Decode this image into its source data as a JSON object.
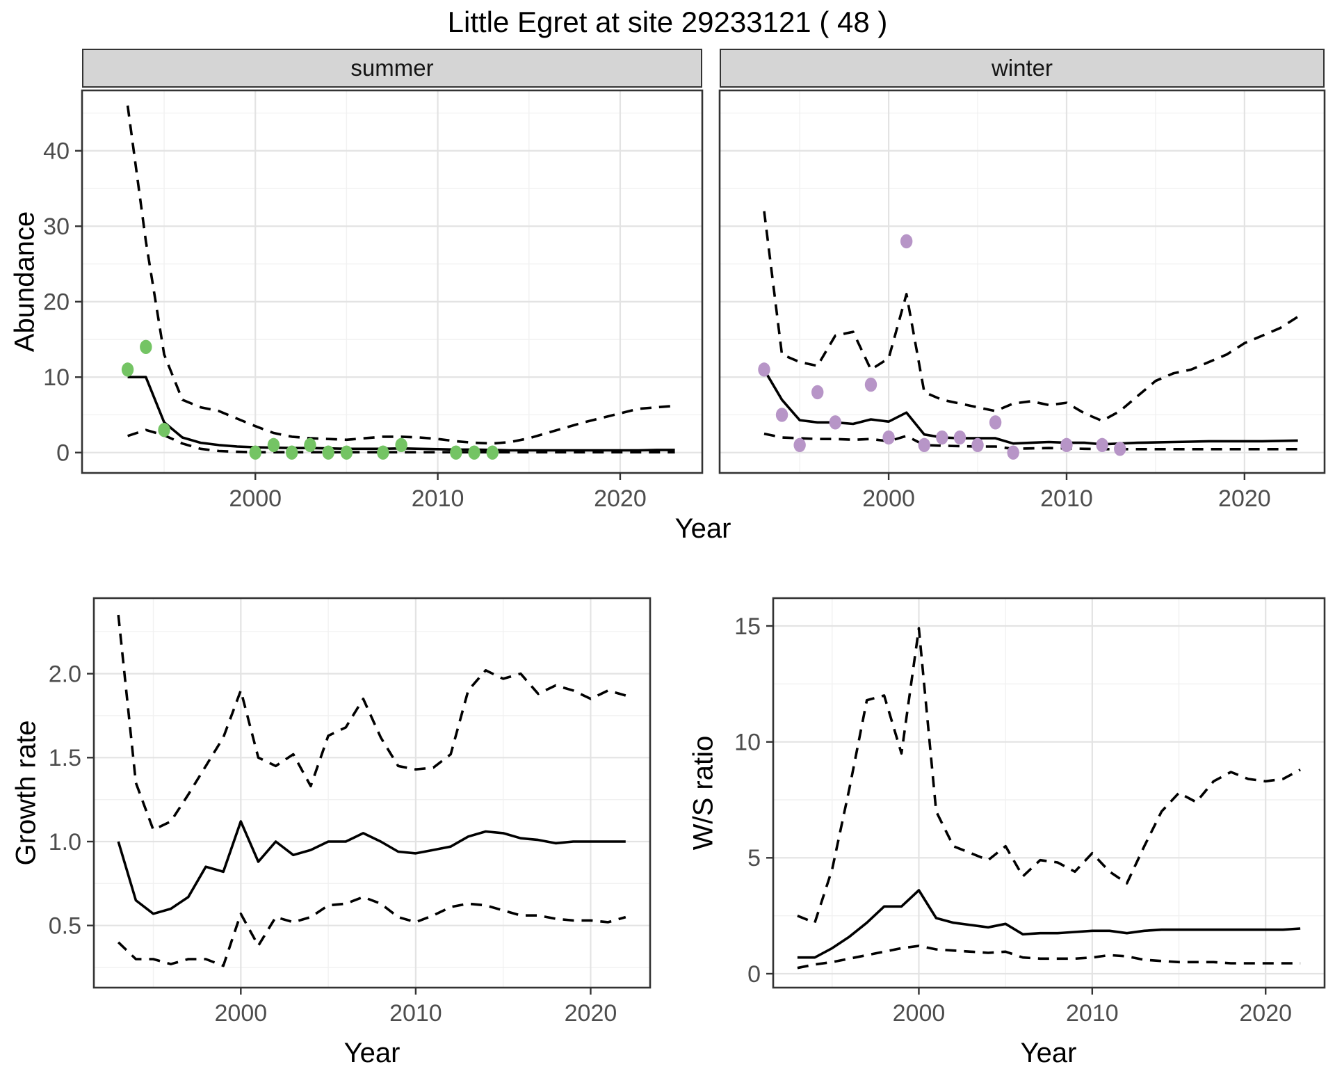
{
  "title": "Little Egret at site 29233121 ( 48 )",
  "labels": {
    "year": "Year",
    "abundance": "Abundance",
    "growth_rate": "Growth rate",
    "ws_ratio": "W/S ratio"
  },
  "colors": {
    "line": "#000000",
    "observed_summer": "#74c464",
    "observed_winter": "#b795c7",
    "grid_major": "#e3e3e3",
    "grid_minor": "#f1f1f1",
    "panel_border": "#333333",
    "tick_mark": "#333333",
    "tick_label": "#4d4d4d",
    "strip_bg": "#d5d5d5"
  },
  "chart_data": [
    {
      "id": "abundance-summer",
      "type": "line",
      "facet_label": "summer",
      "xlabel": "Year",
      "ylabel": "Abundance",
      "xlim": [
        1990.5,
        2024.5
      ],
      "ylim": [
        -2.7,
        48
      ],
      "xticks": [
        2000,
        2010,
        2020
      ],
      "yticks": [
        0,
        10,
        20,
        30,
        40
      ],
      "show_y_labels": true,
      "grid": true,
      "x": [
        1993,
        1994,
        1995,
        1996,
        1997,
        1998,
        1999,
        2000,
        2001,
        2002,
        2003,
        2004,
        2005,
        2006,
        2007,
        2008,
        2009,
        2010,
        2011,
        2012,
        2013,
        2014,
        2015,
        2016,
        2017,
        2018,
        2019,
        2020,
        2021,
        2022,
        2023
      ],
      "series": [
        {
          "name": "fit",
          "style": "solid",
          "y": [
            10,
            10,
            4,
            2,
            1.3,
            1,
            0.8,
            0.7,
            0.65,
            0.6,
            0.6,
            0.55,
            0.5,
            0.5,
            0.5,
            0.55,
            0.5,
            0.45,
            0.4,
            0.4,
            0.35,
            0.3,
            0.3,
            0.3,
            0.3,
            0.3,
            0.3,
            0.3,
            0.3,
            0.35,
            0.35
          ]
        },
        {
          "name": "upper_ci",
          "style": "dashed",
          "y": [
            46,
            28,
            13,
            7,
            6,
            5.5,
            4.5,
            3.5,
            2.6,
            2.1,
            1.9,
            1.8,
            1.7,
            1.9,
            2.1,
            2.1,
            2.0,
            1.8,
            1.5,
            1.3,
            1.2,
            1.4,
            1.9,
            2.6,
            3.3,
            4.0,
            4.6,
            5.2,
            5.8,
            6.0,
            6.2
          ]
        },
        {
          "name": "lower_ci",
          "style": "dashed",
          "y": [
            2.2,
            3.0,
            2.3,
            1.2,
            0.5,
            0.2,
            0.1,
            0.05,
            0.05,
            0.05,
            0.05,
            0.05,
            0.05,
            0.05,
            0.05,
            0.05,
            0.05,
            0.05,
            0.05,
            0.05,
            0.05,
            0.05,
            0.05,
            0.05,
            0.05,
            0.05,
            0.05,
            0.05,
            0.05,
            0.05,
            0.05
          ]
        },
        {
          "name": "observed",
          "type": "scatter",
          "color": "#74c464",
          "points": [
            [
              1993,
              11
            ],
            [
              1994,
              14
            ],
            [
              1995,
              3
            ],
            [
              2000,
              0
            ],
            [
              2001,
              1
            ],
            [
              2002,
              0
            ],
            [
              2003,
              1
            ],
            [
              2004,
              0
            ],
            [
              2005,
              0
            ],
            [
              2007,
              0
            ],
            [
              2008,
              1
            ],
            [
              2011,
              0
            ],
            [
              2012,
              0
            ],
            [
              2013,
              0
            ]
          ]
        }
      ]
    },
    {
      "id": "abundance-winter",
      "type": "line",
      "facet_label": "winter",
      "xlabel": "Year",
      "ylabel": "Abundance",
      "xlim": [
        1990.5,
        2024.5
      ],
      "ylim": [
        -2.7,
        48
      ],
      "xticks": [
        2000,
        2010,
        2020
      ],
      "yticks": [
        0,
        10,
        20,
        30,
        40
      ],
      "show_y_labels": false,
      "grid": true,
      "x": [
        1993,
        1994,
        1995,
        1996,
        1997,
        1998,
        1999,
        2000,
        2001,
        2002,
        2003,
        2004,
        2005,
        2006,
        2007,
        2008,
        2009,
        2010,
        2011,
        2012,
        2013,
        2014,
        2015,
        2016,
        2017,
        2018,
        2019,
        2020,
        2021,
        2022,
        2023
      ],
      "series": [
        {
          "name": "fit",
          "style": "solid",
          "y": [
            11,
            7,
            4.3,
            4.0,
            4.0,
            3.8,
            4.4,
            4.1,
            5.3,
            2.4,
            2.0,
            1.9,
            1.9,
            1.9,
            1.2,
            1.3,
            1.4,
            1.3,
            1.3,
            1.1,
            1.2,
            1.3,
            1.35,
            1.4,
            1.45,
            1.5,
            1.5,
            1.5,
            1.5,
            1.55,
            1.6
          ]
        },
        {
          "name": "upper_ci",
          "style": "dashed",
          "y": [
            32,
            13,
            12,
            11.5,
            15.5,
            16,
            11,
            12.5,
            21,
            8,
            7,
            6.5,
            6,
            5.5,
            6.5,
            6.8,
            6.3,
            6.6,
            5.2,
            4.2,
            5.5,
            7.5,
            9.5,
            10.5,
            11,
            12,
            13,
            14.5,
            15.5,
            16.5,
            18
          ]
        },
        {
          "name": "lower_ci",
          "style": "dashed",
          "y": [
            2.5,
            2.0,
            1.9,
            1.8,
            1.8,
            1.7,
            1.8,
            1.5,
            2.2,
            1.0,
            0.9,
            0.85,
            0.8,
            0.8,
            0.5,
            0.55,
            0.6,
            0.55,
            0.5,
            0.45,
            0.45,
            0.45,
            0.45,
            0.45,
            0.45,
            0.45,
            0.45,
            0.45,
            0.45,
            0.45,
            0.45
          ]
        },
        {
          "name": "observed",
          "type": "scatter",
          "color": "#b795c7",
          "points": [
            [
              1993,
              11
            ],
            [
              1994,
              5
            ],
            [
              1995,
              1
            ],
            [
              1996,
              8
            ],
            [
              1997,
              4
            ],
            [
              1999,
              9
            ],
            [
              2000,
              2
            ],
            [
              2001,
              28
            ],
            [
              2002,
              1
            ],
            [
              2003,
              2
            ],
            [
              2004,
              2
            ],
            [
              2005,
              1
            ],
            [
              2006,
              4
            ],
            [
              2007,
              0
            ],
            [
              2010,
              1
            ],
            [
              2012,
              1
            ],
            [
              2013,
              0.5
            ]
          ]
        }
      ]
    },
    {
      "id": "growth-rate",
      "type": "line",
      "xlabel": "Year",
      "ylabel": "Growth rate",
      "xlim": [
        1991.6,
        2023.4
      ],
      "ylim": [
        0.13,
        2.45
      ],
      "xticks": [
        2000,
        2010,
        2020
      ],
      "yticks": [
        0.5,
        1.0,
        1.5,
        2.0
      ],
      "ytick_labels": [
        "0.5",
        "1.0",
        "1.5",
        "2.0"
      ],
      "show_y_labels": true,
      "grid": true,
      "x": [
        1993,
        1994,
        1995,
        1996,
        1997,
        1998,
        1999,
        2000,
        2001,
        2002,
        2003,
        2004,
        2005,
        2006,
        2007,
        2008,
        2009,
        2010,
        2011,
        2012,
        2013,
        2014,
        2015,
        2016,
        2017,
        2018,
        2019,
        2020,
        2021,
        2022
      ],
      "series": [
        {
          "name": "fit",
          "style": "solid",
          "y": [
            1.0,
            0.65,
            0.57,
            0.6,
            0.67,
            0.85,
            0.82,
            1.12,
            0.88,
            1.0,
            0.92,
            0.95,
            1.0,
            1.0,
            1.05,
            1.0,
            0.94,
            0.93,
            0.95,
            0.97,
            1.03,
            1.06,
            1.05,
            1.02,
            1.01,
            0.99,
            1.0,
            1.0,
            1.0,
            1.0
          ]
        },
        {
          "name": "upper_ci",
          "style": "dashed",
          "y": [
            2.35,
            1.35,
            1.07,
            1.12,
            1.28,
            1.45,
            1.62,
            1.9,
            1.5,
            1.45,
            1.52,
            1.33,
            1.63,
            1.68,
            1.85,
            1.62,
            1.45,
            1.43,
            1.44,
            1.52,
            1.9,
            2.02,
            1.97,
            2.0,
            1.88,
            1.93,
            1.9,
            1.85,
            1.9,
            1.87
          ]
        },
        {
          "name": "lower_ci",
          "style": "dashed",
          "y": [
            0.4,
            0.3,
            0.3,
            0.27,
            0.3,
            0.3,
            0.26,
            0.57,
            0.38,
            0.55,
            0.52,
            0.55,
            0.62,
            0.63,
            0.67,
            0.63,
            0.55,
            0.52,
            0.56,
            0.61,
            0.63,
            0.62,
            0.59,
            0.56,
            0.56,
            0.54,
            0.53,
            0.53,
            0.52,
            0.55
          ]
        }
      ]
    },
    {
      "id": "ws-ratio",
      "type": "line",
      "xlabel": "Year",
      "ylabel": "W/S ratio",
      "xlim": [
        1991.6,
        2023.4
      ],
      "ylim": [
        -0.6,
        16.2
      ],
      "xticks": [
        2000,
        2010,
        2020
      ],
      "yticks": [
        0,
        5,
        10,
        15
      ],
      "show_y_labels": true,
      "grid": true,
      "x": [
        1993,
        1994,
        1995,
        1996,
        1997,
        1998,
        1999,
        2000,
        2001,
        2002,
        2003,
        2004,
        2005,
        2006,
        2007,
        2008,
        2009,
        2010,
        2011,
        2012,
        2013,
        2014,
        2015,
        2016,
        2017,
        2018,
        2019,
        2020,
        2021,
        2022
      ],
      "series": [
        {
          "name": "fit",
          "style": "solid",
          "y": [
            0.7,
            0.7,
            1.1,
            1.6,
            2.2,
            2.9,
            2.9,
            3.6,
            2.4,
            2.2,
            2.1,
            2.0,
            2.15,
            1.7,
            1.75,
            1.75,
            1.8,
            1.85,
            1.85,
            1.75,
            1.85,
            1.9,
            1.9,
            1.9,
            1.9,
            1.9,
            1.9,
            1.9,
            1.9,
            1.95
          ]
        },
        {
          "name": "upper_ci",
          "style": "dashed",
          "y": [
            2.5,
            2.2,
            4.5,
            8.0,
            11.8,
            12.0,
            9.5,
            14.9,
            7.0,
            5.5,
            5.2,
            4.9,
            5.5,
            4.2,
            4.9,
            4.8,
            4.4,
            5.2,
            4.4,
            3.9,
            5.5,
            7.0,
            7.8,
            7.4,
            8.3,
            8.7,
            8.4,
            8.3,
            8.4,
            8.8
          ]
        },
        {
          "name": "lower_ci",
          "style": "dashed",
          "y": [
            0.25,
            0.4,
            0.5,
            0.65,
            0.8,
            0.95,
            1.1,
            1.2,
            1.05,
            1.0,
            0.95,
            0.9,
            0.95,
            0.7,
            0.65,
            0.65,
            0.65,
            0.7,
            0.8,
            0.75,
            0.6,
            0.55,
            0.5,
            0.5,
            0.5,
            0.45,
            0.45,
            0.45,
            0.45,
            0.45
          ]
        }
      ]
    }
  ]
}
